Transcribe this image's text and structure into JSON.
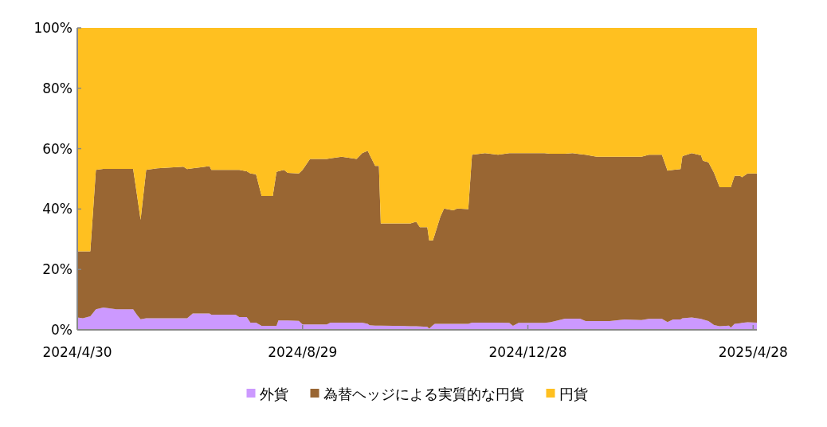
{
  "chart_data": {
    "type": "area",
    "stacked": true,
    "legend": "bottom",
    "grid": false,
    "x": [
      "2024-04-30",
      "2024-05-03",
      "2024-05-07",
      "2024-05-10",
      "2024-05-14",
      "2024-05-21",
      "2024-05-30",
      "2024-06-01",
      "2024-06-03",
      "2024-06-06",
      "2024-06-12",
      "2024-06-26",
      "2024-06-28",
      "2024-07-01",
      "2024-07-10",
      "2024-07-11",
      "2024-07-24",
      "2024-07-26",
      "2024-07-30",
      "2024-08-01",
      "2024-08-04",
      "2024-08-07",
      "2024-08-13",
      "2024-08-15",
      "2024-08-16",
      "2024-08-19",
      "2024-08-21",
      "2024-08-27",
      "2024-08-29",
      "2024-09-02",
      "2024-09-11",
      "2024-09-13",
      "2024-09-19",
      "2024-09-27",
      "2024-09-30",
      "2024-10-03",
      "2024-10-04",
      "2024-10-07",
      "2024-10-09",
      "2024-10-10",
      "2024-10-26",
      "2024-10-29",
      "2024-10-31",
      "2024-11-04",
      "2024-11-05",
      "2024-11-07",
      "2024-11-08",
      "2024-11-11",
      "2024-11-13",
      "2024-11-18",
      "2024-11-20",
      "2024-11-26",
      "2024-11-28",
      "2024-12-05",
      "2024-12-12",
      "2024-12-18",
      "2024-12-20",
      "2024-12-23",
      "2025-01-06",
      "2025-01-09",
      "2025-01-17",
      "2025-01-21",
      "2025-01-25",
      "2025-01-28",
      "2025-02-03",
      "2025-02-10",
      "2025-02-18",
      "2025-02-27",
      "2025-03-03",
      "2025-03-10",
      "2025-03-13",
      "2025-03-16",
      "2025-03-20",
      "2025-03-21",
      "2025-03-26",
      "2025-03-31",
      "2025-04-01",
      "2025-04-04",
      "2025-04-07",
      "2025-04-10",
      "2025-04-15",
      "2025-04-16",
      "2025-04-18",
      "2025-04-21",
      "2025-04-22",
      "2025-04-25",
      "2025-04-30"
    ],
    "series": [
      {
        "name": "外貨",
        "color": "#cc99ff",
        "values": [
          4.1,
          3.8,
          4.5,
          6.8,
          7.4,
          6.8,
          6.8,
          5,
          3.5,
          3.8,
          3.8,
          3.8,
          3.8,
          5.4,
          5.4,
          5,
          5,
          4.2,
          4.2,
          2.4,
          2.4,
          1.3,
          1.3,
          1.3,
          3.1,
          3.1,
          3.1,
          3,
          1.8,
          1.8,
          1.8,
          2.4,
          2.4,
          2.4,
          2.4,
          2,
          1.5,
          1.4,
          1.4,
          1.4,
          1.2,
          1.2,
          1.1,
          1,
          0.4,
          1.5,
          2,
          2,
          2,
          2,
          2,
          2,
          2.4,
          2.4,
          2.4,
          2.3,
          1.3,
          2.3,
          2.3,
          2.5,
          3.7,
          3.7,
          3.7,
          2.9,
          2.9,
          2.9,
          3.4,
          3.2,
          3.6,
          3.6,
          2.6,
          3.4,
          3.4,
          3.8,
          4.1,
          3.6,
          3.4,
          2.9,
          1.6,
          1.2,
          1.4,
          0.7,
          2,
          2.2,
          2.3,
          2.5,
          2.4
        ]
      },
      {
        "name": "為替ヘッジによる実質的な円貨",
        "color": "#996633",
        "values": [
          21.9,
          22.2,
          21.5,
          46.2,
          45.9,
          46.5,
          46.5,
          40,
          32.9,
          49.2,
          49.7,
          50.2,
          49.4,
          48.1,
          48.8,
          48,
          48,
          48.8,
          48.3,
          49.4,
          49.1,
          43,
          43,
          51,
          49.4,
          49.9,
          48.9,
          48.8,
          51.2,
          54.8,
          54.8,
          54.4,
          54.9,
          54.2,
          56.1,
          57.3,
          56.5,
          52.9,
          52.9,
          33.8,
          34,
          34.6,
          32.9,
          33,
          29.2,
          28.1,
          29.5,
          35.5,
          38.2,
          37.6,
          38.2,
          38,
          55.6,
          56.1,
          55.6,
          56.2,
          57.2,
          56.2,
          56.2,
          55.8,
          54.6,
          54.8,
          54.5,
          55.1,
          54.4,
          54.4,
          53.9,
          54.1,
          54.4,
          54.4,
          50.1,
          49.6,
          49.8,
          53.7,
          54.4,
          54.2,
          52.6,
          52.6,
          50.4,
          46,
          45.8,
          46.5,
          49,
          48.8,
          48.2,
          49.3,
          49.4
        ]
      },
      {
        "name": "円貨",
        "color": "#ffc020",
        "values": [
          74,
          74,
          74,
          47,
          46.7,
          46.7,
          46.7,
          55,
          63.6,
          47,
          46.5,
          46,
          46.8,
          46.5,
          45.8,
          47,
          47,
          47,
          47.5,
          48.2,
          48.5,
          55.7,
          55.7,
          47.7,
          47.5,
          47,
          48,
          48.2,
          47,
          43.4,
          43.4,
          43.2,
          42.7,
          43.4,
          41.5,
          40.7,
          42,
          45.7,
          45.7,
          64.8,
          64.8,
          64.2,
          66,
          66,
          70.4,
          70.4,
          68.5,
          62.5,
          59.8,
          60.4,
          59.8,
          60,
          42,
          41.5,
          42,
          41.5,
          41.5,
          41.5,
          41.5,
          41.7,
          41.7,
          41.5,
          41.8,
          42,
          42.7,
          42.7,
          42.7,
          42.7,
          42,
          42,
          47.3,
          47,
          46.8,
          42.5,
          41.5,
          42.2,
          44,
          44.5,
          48,
          52.8,
          52.8,
          52.8,
          49,
          49,
          49.5,
          48.2,
          48.2
        ]
      }
    ],
    "xlim": [
      "2024-04-30",
      "2025-04-30"
    ],
    "xticks": [
      {
        "value": "2024-04-30",
        "label": "2024/4/30"
      },
      {
        "value": "2024-08-29",
        "label": "2024/8/29"
      },
      {
        "value": "2024-12-28",
        "label": "2024/12/28"
      },
      {
        "value": "2025-04-28",
        "label": "2025/4/28"
      }
    ],
    "ylim": [
      0,
      100
    ],
    "yticks": [
      {
        "value": 0,
        "label": "0%"
      },
      {
        "value": 20,
        "label": "20%"
      },
      {
        "value": 40,
        "label": "40%"
      },
      {
        "value": 60,
        "label": "60%"
      },
      {
        "value": 80,
        "label": "80%"
      },
      {
        "value": 100,
        "label": "100%"
      }
    ]
  }
}
